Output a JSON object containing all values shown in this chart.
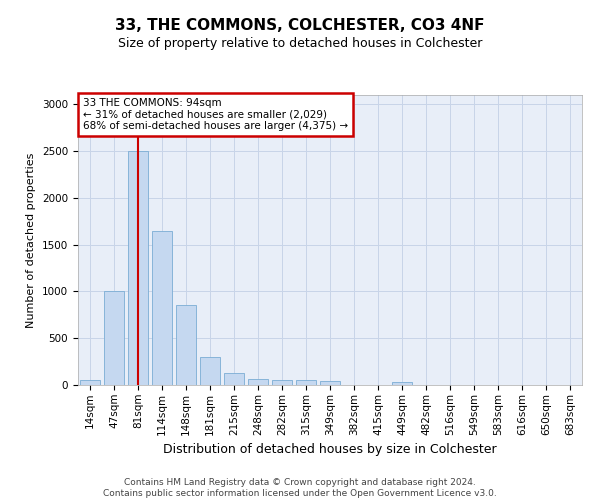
{
  "title": "33, THE COMMONS, COLCHESTER, CO3 4NF",
  "subtitle": "Size of property relative to detached houses in Colchester",
  "xlabel": "Distribution of detached houses by size in Colchester",
  "ylabel": "Number of detached properties",
  "footer": "Contains HM Land Registry data © Crown copyright and database right 2024.\nContains public sector information licensed under the Open Government Licence v3.0.",
  "annotation_title": "33 THE COMMONS: 94sqm",
  "annotation_line1": "← 31% of detached houses are smaller (2,029)",
  "annotation_line2": "68% of semi-detached houses are larger (4,375) →",
  "bar_color": "#c5d8f0",
  "bar_edge_color": "#7badd4",
  "vline_color": "#cc0000",
  "annotation_box_color": "#cc0000",
  "grid_color": "#c8d4e8",
  "background_color": "#e8eef8",
  "categories": [
    "14sqm",
    "47sqm",
    "81sqm",
    "114sqm",
    "148sqm",
    "181sqm",
    "215sqm",
    "248sqm",
    "282sqm",
    "315sqm",
    "349sqm",
    "382sqm",
    "415sqm",
    "449sqm",
    "482sqm",
    "516sqm",
    "549sqm",
    "583sqm",
    "616sqm",
    "650sqm",
    "683sqm"
  ],
  "values": [
    50,
    1000,
    2500,
    1650,
    850,
    300,
    130,
    65,
    50,
    50,
    40,
    0,
    0,
    30,
    0,
    0,
    0,
    0,
    0,
    0,
    0
  ],
  "vline_x_index": 2,
  "ylim": [
    0,
    3100
  ],
  "yticks": [
    0,
    500,
    1000,
    1500,
    2000,
    2500,
    3000
  ],
  "title_fontsize": 11,
  "subtitle_fontsize": 9,
  "ylabel_fontsize": 8,
  "xlabel_fontsize": 9,
  "tick_fontsize": 7.5,
  "footer_fontsize": 6.5
}
